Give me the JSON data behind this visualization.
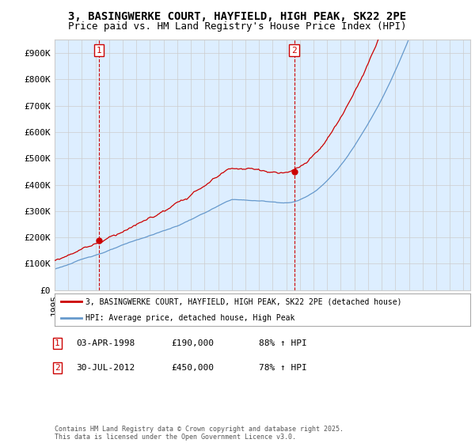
{
  "title": "3, BASINGWERKE COURT, HAYFIELD, HIGH PEAK, SK22 2PE",
  "subtitle": "Price paid vs. HM Land Registry's House Price Index (HPI)",
  "ylim": [
    0,
    950000
  ],
  "yticks": [
    0,
    100000,
    200000,
    300000,
    400000,
    500000,
    600000,
    700000,
    800000,
    900000
  ],
  "ytick_labels": [
    "£0",
    "£100K",
    "£200K",
    "£300K",
    "£400K",
    "£500K",
    "£600K",
    "£700K",
    "£800K",
    "£900K"
  ],
  "xlim_start": 1995.0,
  "xlim_end": 2025.5,
  "hpi_color": "#6699cc",
  "price_color": "#cc0000",
  "chart_bg": "#ddeeff",
  "sale1_date": 1998.25,
  "sale1_price": 190000,
  "sale2_date": 2012.58,
  "sale2_price": 450000,
  "legend_label1": "3, BASINGWERKE COURT, HAYFIELD, HIGH PEAK, SK22 2PE (detached house)",
  "legend_label2": "HPI: Average price, detached house, High Peak",
  "note1_label": "1",
  "note1_date": "03-APR-1998",
  "note1_price": "£190,000",
  "note1_hpi": "88% ↑ HPI",
  "note2_label": "2",
  "note2_date": "30-JUL-2012",
  "note2_price": "£450,000",
  "note2_hpi": "78% ↑ HPI",
  "footer": "Contains HM Land Registry data © Crown copyright and database right 2025.\nThis data is licensed under the Open Government Licence v3.0.",
  "background_color": "#ffffff",
  "grid_color": "#cccccc",
  "title_fontsize": 10,
  "subtitle_fontsize": 9,
  "tick_fontsize": 8
}
